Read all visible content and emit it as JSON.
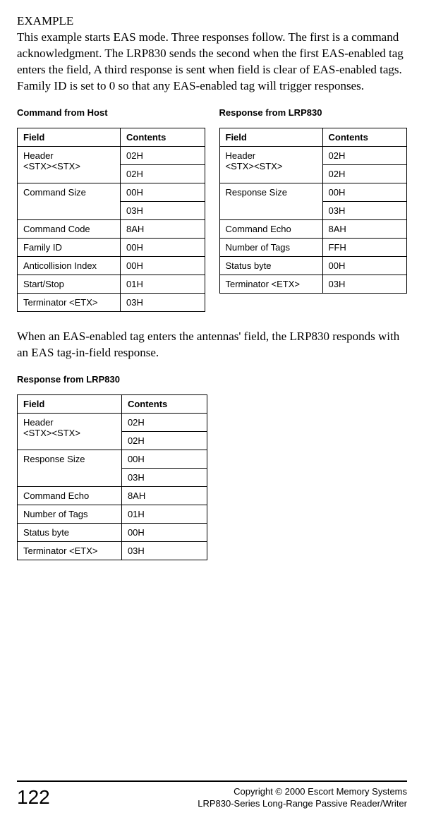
{
  "heading": "EXAMPLE",
  "para1": "This example starts EAS mode. Three responses follow. The first is a command acknowledgment. The LRP830 sends the second when the first EAS-enabled tag enters the field, A third response is sent when field is clear of EAS-enabled tags. Family ID is set to 0 so that any EAS-enabled tag will trigger responses.",
  "tables": {
    "command": {
      "title": "Command from Host",
      "head_field": "Field",
      "head_contents": "Contents",
      "rows": [
        {
          "field": "Header\n<STX><STX>",
          "contents": "02H",
          "span": 2,
          "sub": "02H"
        },
        {
          "field": "Command Size",
          "contents": "00H",
          "span": 2,
          "sub": "03H"
        },
        {
          "field": "Command Code",
          "contents": "8AH"
        },
        {
          "field": "Family ID",
          "contents": "00H"
        },
        {
          "field": "Anticollision Index",
          "contents": "00H"
        },
        {
          "field": "Start/Stop",
          "contents": "01H"
        },
        {
          "field": "Terminator <ETX>",
          "contents": "03H"
        }
      ]
    },
    "response1": {
      "title": "Response from LRP830",
      "head_field": "Field",
      "head_contents": "Contents",
      "rows": [
        {
          "field": "Header\n<STX><STX>",
          "contents": "02H",
          "span": 2,
          "sub": "02H"
        },
        {
          "field": "Response Size",
          "contents": "00H",
          "span": 2,
          "sub": "03H"
        },
        {
          "field": "Command Echo",
          "contents": "8AH"
        },
        {
          "field": "Number of Tags",
          "contents": "FFH"
        },
        {
          "field": "Status byte",
          "contents": "00H"
        },
        {
          "field": "Terminator <ETX>",
          "contents": "03H"
        }
      ]
    },
    "response2": {
      "title": "Response from LRP830",
      "head_field": "Field",
      "head_contents": "Contents",
      "rows": [
        {
          "field": "Header\n<STX><STX>",
          "contents": "02H",
          "span": 2,
          "sub": "02H"
        },
        {
          "field": "Response Size",
          "contents": "00H",
          "span": 2,
          "sub": "03H"
        },
        {
          "field": "Command Echo",
          "contents": "8AH"
        },
        {
          "field": "Number of Tags",
          "contents": "01H"
        },
        {
          "field": "Status byte",
          "contents": "00H"
        },
        {
          "field": "Terminator <ETX>",
          "contents": "03H"
        }
      ]
    }
  },
  "para2": "When an EAS-enabled tag enters the antennas' field, the LRP830 responds with an EAS tag-in-field response.",
  "footer": {
    "page": "122",
    "line1": "Copyright © 2000 Escort Memory Systems",
    "line2": "LRP830-Series Long-Range Passive Reader/Writer"
  }
}
